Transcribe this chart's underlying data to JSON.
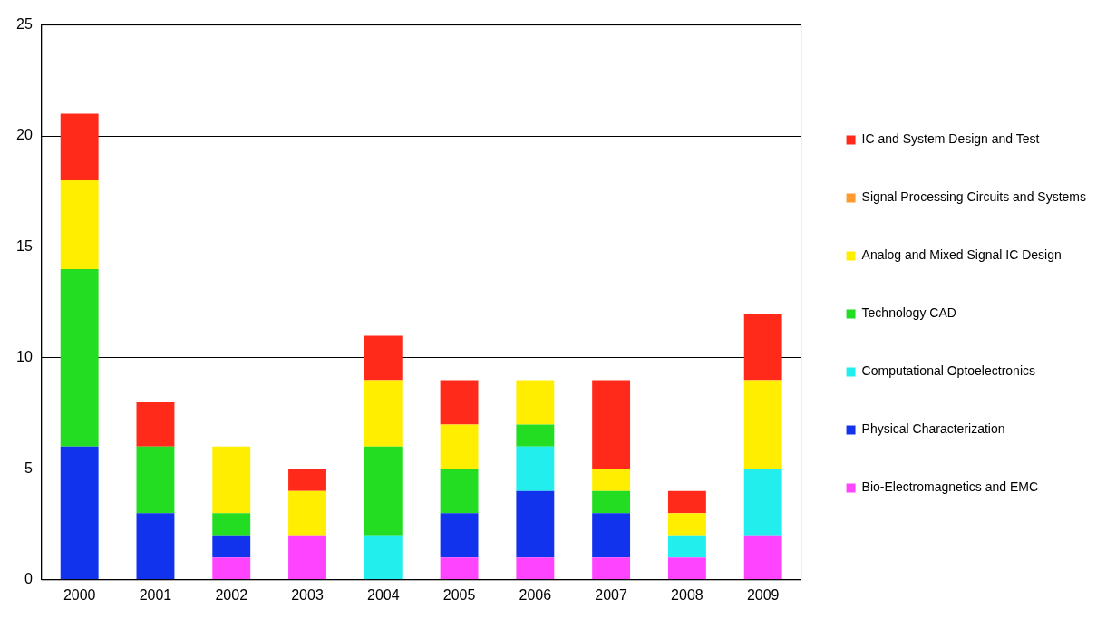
{
  "chart_data": {
    "type": "bar",
    "stacked": true,
    "categories": [
      "2000",
      "2001",
      "2002",
      "2003",
      "2004",
      "2005",
      "2006",
      "2007",
      "2008",
      "2009"
    ],
    "series": [
      {
        "name": "Bio-Electromagnetics and EMC",
        "color": "#ff44ff",
        "values": [
          0,
          0,
          1,
          2,
          0,
          1,
          1,
          1,
          1,
          2
        ]
      },
      {
        "name": "Physical Characterization",
        "color": "#1133ee",
        "values": [
          6,
          3,
          1,
          0,
          0,
          2,
          3,
          2,
          0,
          0
        ]
      },
      {
        "name": "Computational Optoelectronics",
        "color": "#22eeee",
        "values": [
          0,
          0,
          0,
          0,
          2,
          0,
          2,
          0,
          1,
          3
        ]
      },
      {
        "name": "Technology CAD",
        "color": "#22dd22",
        "values": [
          8,
          3,
          1,
          0,
          4,
          2,
          1,
          1,
          0,
          0
        ]
      },
      {
        "name": "Analog and Mixed Signal IC Design",
        "color": "#ffee00",
        "values": [
          4,
          0,
          3,
          2,
          3,
          2,
          2,
          1,
          1,
          4
        ]
      },
      {
        "name": "Signal Processing Circuits and Systems",
        "color": "#ff9a30",
        "values": [
          0,
          0,
          0,
          0,
          0,
          0,
          0,
          0,
          0,
          0
        ]
      },
      {
        "name": "IC and System Design and Test",
        "color": "#ff2a1a",
        "values": [
          3,
          2,
          0,
          1,
          2,
          2,
          0,
          4,
          1,
          3
        ]
      }
    ],
    "ylim": [
      0,
      25
    ],
    "yticks": [
      0,
      5,
      10,
      15,
      20,
      25
    ],
    "grid": "y",
    "legend": "right"
  }
}
